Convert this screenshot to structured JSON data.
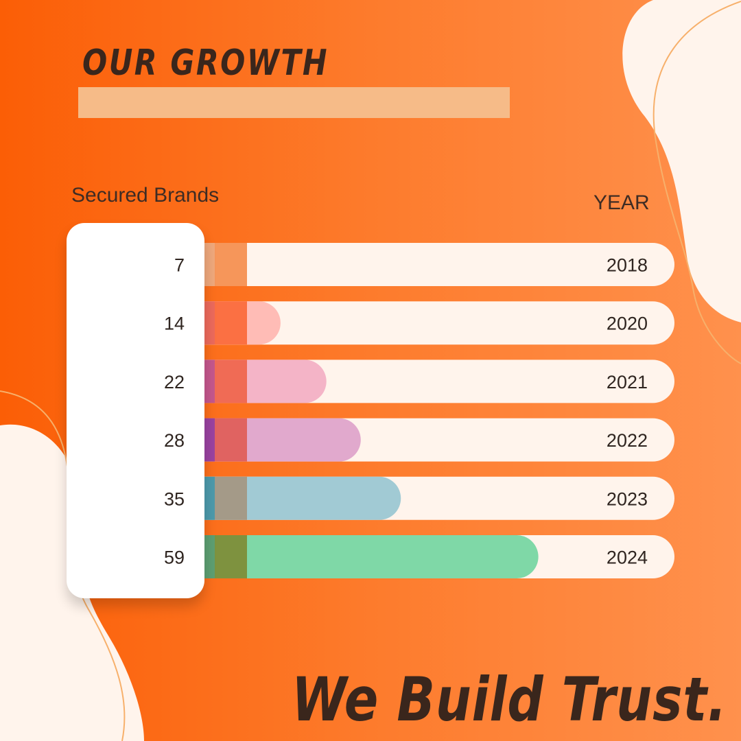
{
  "headline": "OUR GROWTH",
  "tagline": "We Build Trust.",
  "colors": {
    "background_start": "#fb5e06",
    "background_end": "#ff914d",
    "cream": "#fff4ec",
    "heading": "#3a261c",
    "highlight_bar": "#f6bb88"
  },
  "chart_data": {
    "type": "bar",
    "orientation": "horizontal",
    "xlabel": "Secured Brands",
    "ylabel": "YEAR",
    "categories": [
      "2018",
      "2020",
      "2021",
      "2022",
      "2023",
      "2024"
    ],
    "values": [
      7,
      14,
      22,
      28,
      35,
      59
    ],
    "xlim": [
      0,
      80
    ],
    "grid": false,
    "bar_colors": [
      "#f5995a",
      "#ffbcb6",
      "#f4b4c7",
      "#e1a9cd",
      "#a1cad4",
      "#7fd8a7"
    ],
    "accent_colors": [
      [
        "#efa87c",
        "#f6965a"
      ],
      [
        "#ec6a5c",
        "#fb7043"
      ],
      [
        "#c5578d",
        "#f06b55"
      ],
      [
        "#9a43a1",
        "#e06361"
      ],
      [
        "#4d9aab",
        "#a49a88"
      ],
      [
        "#5d9f72",
        "#7e923f"
      ]
    ]
  }
}
